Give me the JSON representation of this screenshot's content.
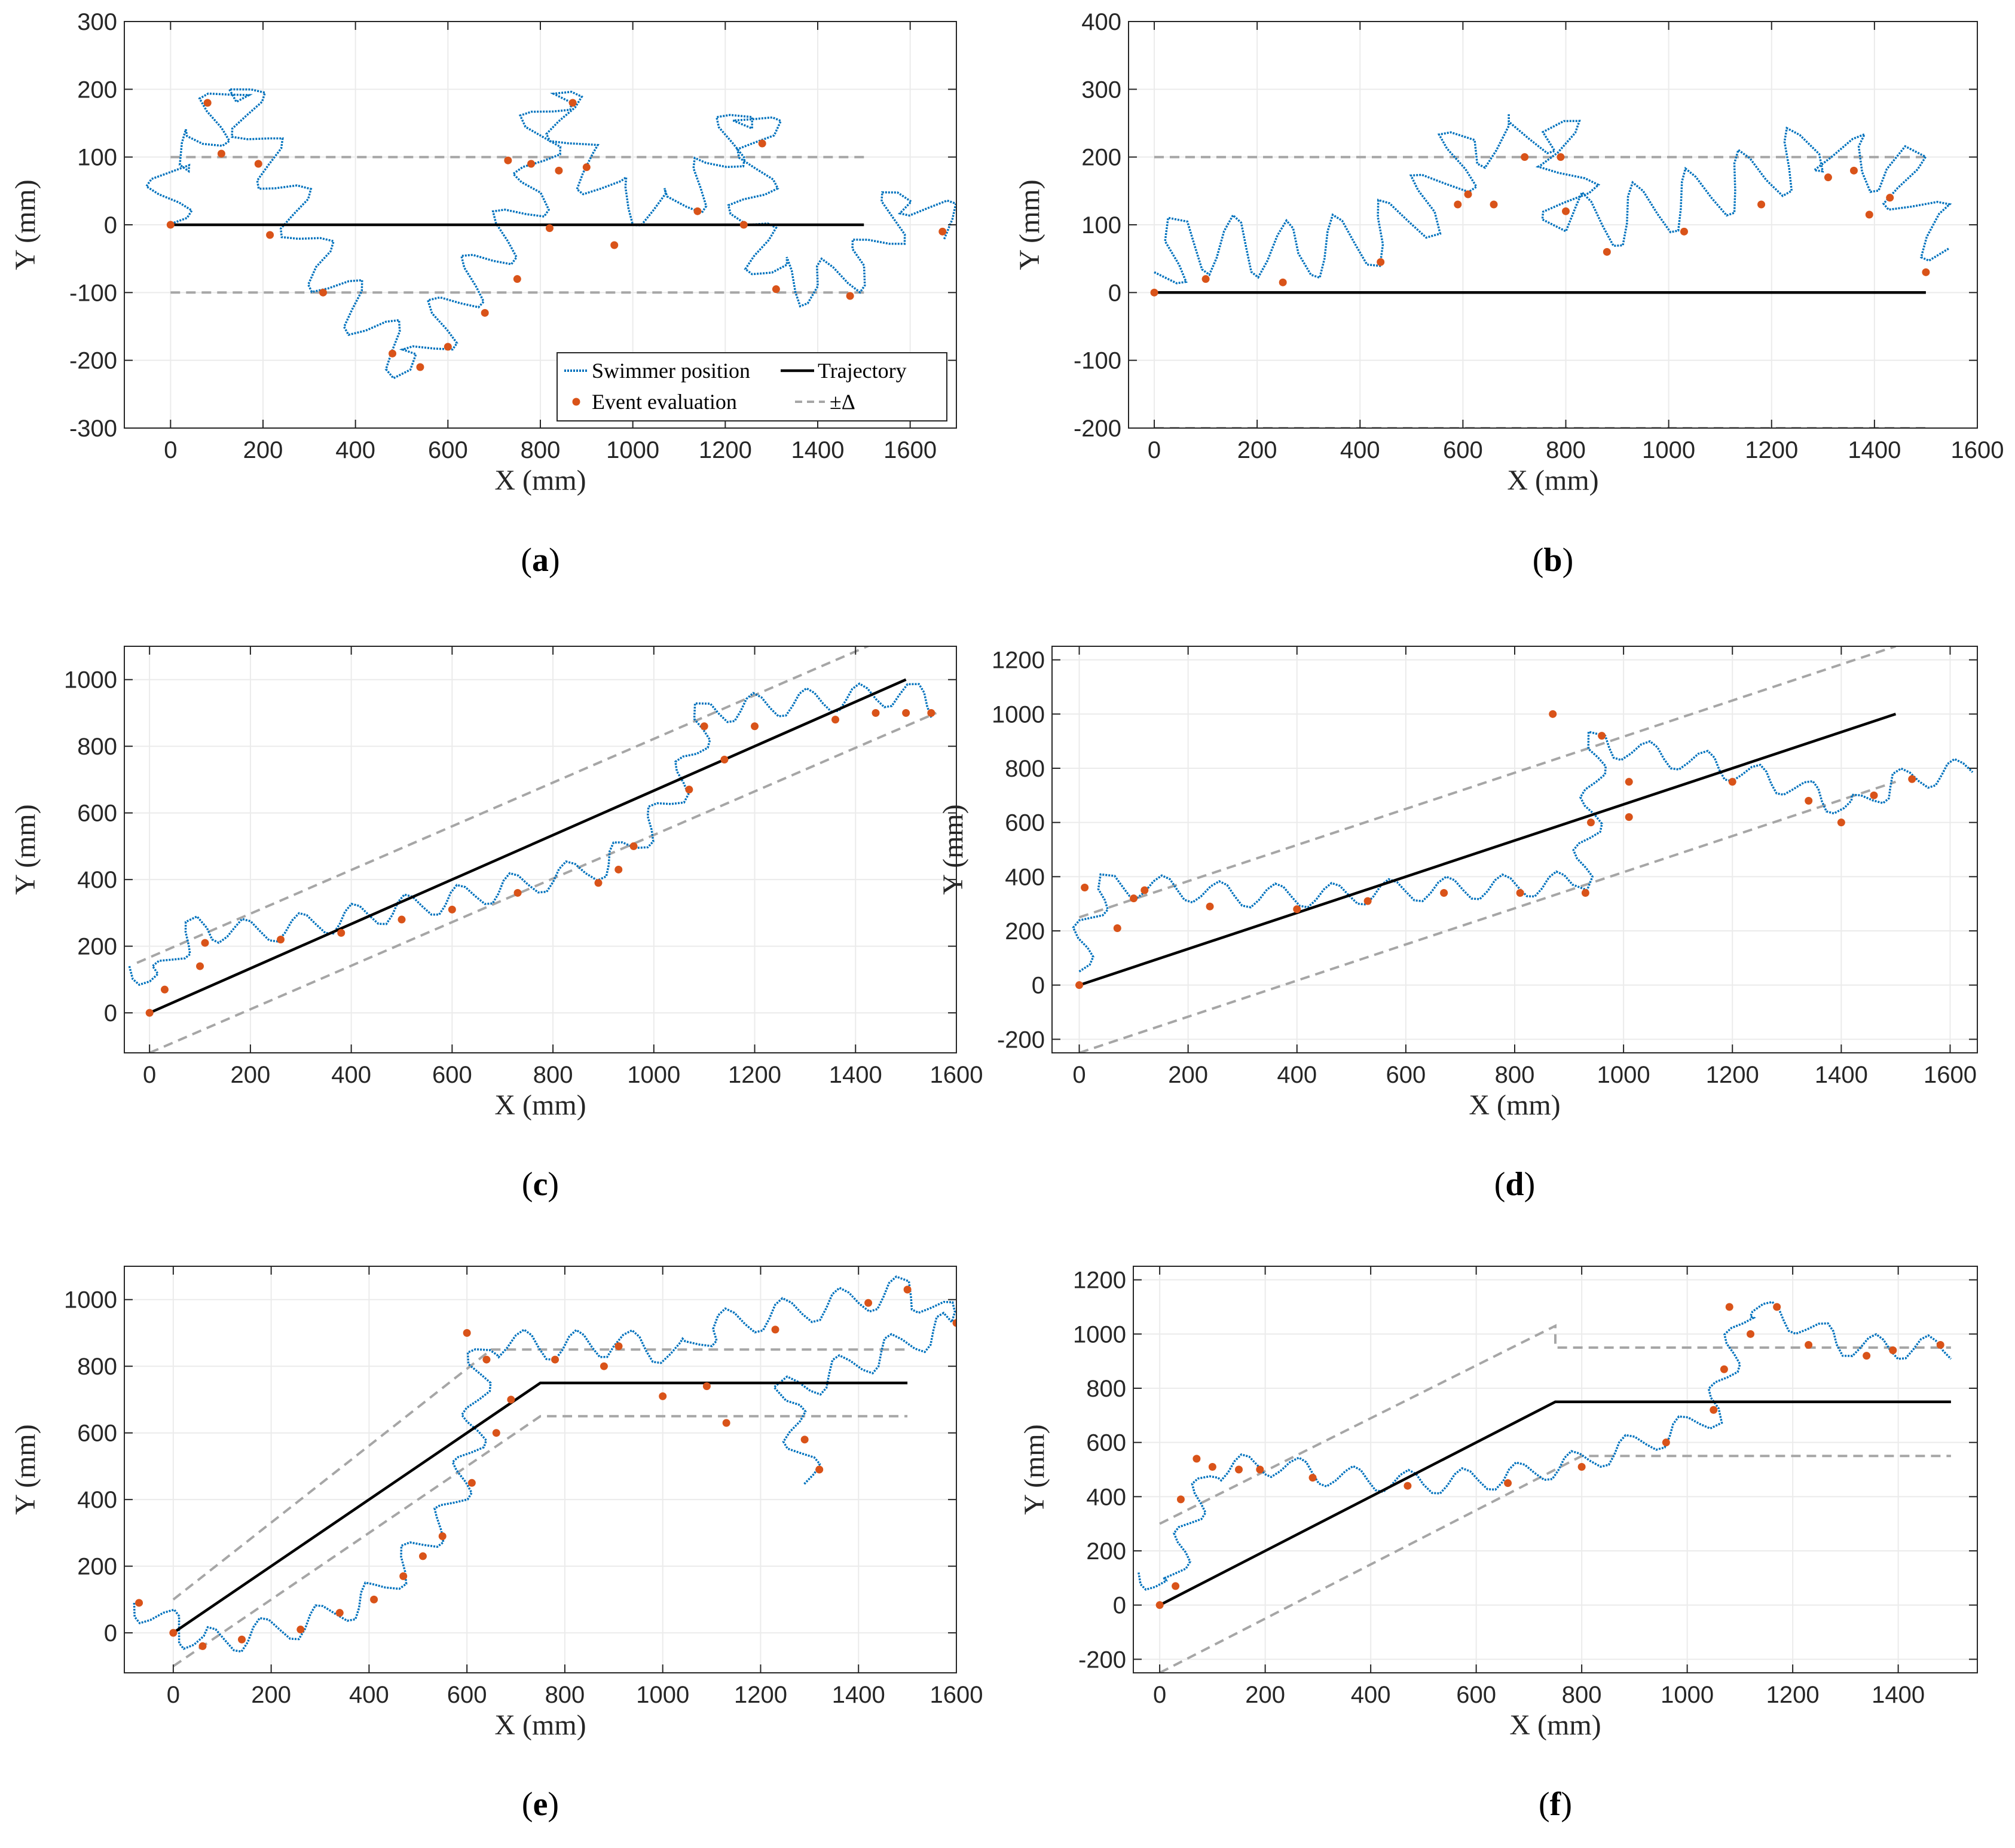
{
  "colors": {
    "swimmer": "#0072BD",
    "event": "#D95319",
    "trajectory": "#000000",
    "delta": "#A6A6A6",
    "grid": "#EBEBEB",
    "axes": "#262626"
  },
  "legend": {
    "swimmer": "Swimmer position",
    "trajectory": "Trajectory",
    "event": "Event evaluation",
    "delta": "±Δ"
  },
  "chart_data": [
    {
      "panel": "a",
      "type": "line",
      "xlabel": "X (mm)",
      "ylabel": "Y (mm)",
      "xlim": [
        -100,
        1700
      ],
      "ylim": [
        -300,
        300
      ],
      "xticks": [
        0,
        200,
        400,
        600,
        800,
        1000,
        1200,
        1400,
        1600
      ],
      "yticks": [
        -300,
        -200,
        -100,
        0,
        100,
        200,
        300
      ],
      "grid": true,
      "legend_position": "bottom-right",
      "trajectory": [
        [
          0,
          0
        ],
        [
          1500,
          0
        ]
      ],
      "delta_bounds": [
        [
          [
            0,
            100
          ],
          [
            1500,
            100
          ]
        ],
        [
          [
            0,
            -100
          ],
          [
            1500,
            -100
          ]
        ]
      ],
      "swimmer_path": [
        [
          -5,
          0
        ],
        [
          0,
          100
        ],
        [
          60,
          110
        ],
        [
          100,
          160
        ],
        [
          140,
          215
        ],
        [
          190,
          120
        ],
        [
          250,
          50
        ],
        [
          320,
          -60
        ],
        [
          420,
          -140
        ],
        [
          510,
          -200
        ],
        [
          540,
          -210
        ],
        [
          600,
          -130
        ],
        [
          700,
          -40
        ],
        [
          790,
          50
        ],
        [
          800,
          140
        ],
        [
          830,
          200
        ],
        [
          880,
          100
        ],
        [
          960,
          40
        ],
        [
          1080,
          20
        ],
        [
          1180,
          80
        ],
        [
          1250,
          175
        ],
        [
          1280,
          130
        ],
        [
          1250,
          0
        ],
        [
          1310,
          -80
        ],
        [
          1400,
          -90
        ],
        [
          1500,
          -60
        ],
        [
          1600,
          50
        ],
        [
          1690,
          -10
        ]
      ],
      "amplitude": 35,
      "events": [
        [
          0,
          0
        ],
        [
          80,
          180
        ],
        [
          110,
          105
        ],
        [
          190,
          90
        ],
        [
          215,
          -15
        ],
        [
          330,
          -100
        ],
        [
          480,
          -190
        ],
        [
          540,
          -210
        ],
        [
          600,
          -180
        ],
        [
          680,
          -130
        ],
        [
          750,
          -80
        ],
        [
          730,
          95
        ],
        [
          780,
          90
        ],
        [
          820,
          -5
        ],
        [
          840,
          80
        ],
        [
          870,
          180
        ],
        [
          900,
          85
        ],
        [
          960,
          -30
        ],
        [
          1140,
          20
        ],
        [
          1240,
          0
        ],
        [
          1280,
          120
        ],
        [
          1310,
          -95
        ],
        [
          1470,
          -105
        ],
        [
          1670,
          -10
        ]
      ]
    },
    {
      "panel": "b",
      "type": "line",
      "xlabel": "X (mm)",
      "ylabel": "Y (mm)",
      "xlim": [
        -50,
        1600
      ],
      "ylim": [
        -200,
        400
      ],
      "xticks": [
        0,
        200,
        400,
        600,
        800,
        1000,
        1200,
        1400,
        1600
      ],
      "yticks": [
        -200,
        -100,
        0,
        100,
        200,
        300,
        400
      ],
      "grid": true,
      "legend_position": "none",
      "trajectory": [
        [
          0,
          0
        ],
        [
          1500,
          0
        ]
      ],
      "delta_bounds": [
        [
          [
            0,
            200
          ],
          [
            1500,
            200
          ]
        ],
        [
          [
            0,
            -200
          ],
          [
            1500,
            -200
          ]
        ]
      ],
      "swimmer_path": [
        [
          0,
          30
        ],
        [
          50,
          70
        ],
        [
          150,
          70
        ],
        [
          280,
          60
        ],
        [
          420,
          80
        ],
        [
          520,
          120
        ],
        [
          580,
          180
        ],
        [
          620,
          230
        ],
        [
          700,
          220
        ],
        [
          760,
          250
        ],
        [
          800,
          200
        ],
        [
          810,
          100
        ],
        [
          900,
          110
        ],
        [
          1050,
          140
        ],
        [
          1200,
          180
        ],
        [
          1300,
          220
        ],
        [
          1360,
          190
        ],
        [
          1440,
          190
        ],
        [
          1500,
          100
        ],
        [
          1550,
          70
        ]
      ],
      "amplitude": 45,
      "events": [
        [
          0,
          0
        ],
        [
          100,
          20
        ],
        [
          250,
          15
        ],
        [
          440,
          45
        ],
        [
          590,
          130
        ],
        [
          610,
          145
        ],
        [
          660,
          130
        ],
        [
          720,
          200
        ],
        [
          790,
          200
        ],
        [
          800,
          120
        ],
        [
          880,
          60
        ],
        [
          1030,
          90
        ],
        [
          1180,
          130
        ],
        [
          1310,
          170
        ],
        [
          1360,
          180
        ],
        [
          1390,
          115
        ],
        [
          1430,
          140
        ],
        [
          1500,
          30
        ]
      ]
    },
    {
      "panel": "c",
      "type": "line",
      "xlabel": "X (mm)",
      "ylabel": "Y (mm)",
      "xlim": [
        -50,
        1600
      ],
      "ylim": [
        -120,
        1100
      ],
      "xticks": [
        0,
        200,
        400,
        600,
        800,
        1000,
        1200,
        1400,
        1600
      ],
      "yticks": [
        0,
        200,
        400,
        600,
        800,
        1000
      ],
      "grid": true,
      "legend_position": "none",
      "trajectory": [
        [
          0,
          0
        ],
        [
          1500,
          1000
        ]
      ],
      "delta_bounds": [
        [
          [
            -25,
            150
          ],
          [
            1500,
            1150
          ]
        ],
        [
          [
            0,
            -120
          ],
          [
            1560,
            900
          ]
        ]
      ],
      "swimmer_path": [
        [
          -40,
          140
        ],
        [
          20,
          100
        ],
        [
          60,
          200
        ],
        [
          100,
          260
        ],
        [
          170,
          240
        ],
        [
          300,
          260
        ],
        [
          450,
          300
        ],
        [
          600,
          340
        ],
        [
          750,
          390
        ],
        [
          880,
          430
        ],
        [
          960,
          500
        ],
        [
          1040,
          650
        ],
        [
          1080,
          780
        ],
        [
          1100,
          900
        ],
        [
          1200,
          920
        ],
        [
          1350,
          940
        ],
        [
          1500,
          960
        ],
        [
          1560,
          920
        ]
      ],
      "amplitude": 40,
      "events": [
        [
          0,
          0
        ],
        [
          30,
          70
        ],
        [
          100,
          140
        ],
        [
          110,
          210
        ],
        [
          260,
          220
        ],
        [
          380,
          240
        ],
        [
          500,
          280
        ],
        [
          600,
          310
        ],
        [
          730,
          360
        ],
        [
          890,
          390
        ],
        [
          930,
          430
        ],
        [
          960,
          500
        ],
        [
          1070,
          670
        ],
        [
          1100,
          860
        ],
        [
          1140,
          760
        ],
        [
          1200,
          860
        ],
        [
          1360,
          880
        ],
        [
          1440,
          900
        ],
        [
          1500,
          900
        ],
        [
          1550,
          900
        ]
      ]
    },
    {
      "panel": "d",
      "type": "line",
      "xlabel": "X (mm)",
      "ylabel": "Y (mm)",
      "xlim": [
        -50,
        1650
      ],
      "ylim": [
        -250,
        1250
      ],
      "xticks": [
        0,
        200,
        400,
        600,
        800,
        1000,
        1200,
        1400,
        1600
      ],
      "yticks": [
        -200,
        0,
        200,
        400,
        600,
        800,
        1000,
        1200
      ],
      "grid": true,
      "legend_position": "none",
      "trajectory": [
        [
          0,
          0
        ],
        [
          1500,
          1000
        ]
      ],
      "delta_bounds": [
        [
          [
            0,
            250
          ],
          [
            1500,
            1250
          ]
        ],
        [
          [
            0,
            -250
          ],
          [
            1500,
            750
          ]
        ]
      ],
      "swimmer_path": [
        [
          0,
          50
        ],
        [
          10,
          200
        ],
        [
          50,
          370
        ],
        [
          150,
          360
        ],
        [
          300,
          330
        ],
        [
          450,
          330
        ],
        [
          600,
          350
        ],
        [
          750,
          360
        ],
        [
          850,
          370
        ],
        [
          920,
          380
        ],
        [
          940,
          600
        ],
        [
          950,
          900
        ],
        [
          1000,
          870
        ],
        [
          1150,
          820
        ],
        [
          1300,
          740
        ],
        [
          1420,
          650
        ],
        [
          1500,
          750
        ],
        [
          1640,
          800
        ]
      ],
      "amplitude": 45,
      "events": [
        [
          0,
          0
        ],
        [
          10,
          360
        ],
        [
          70,
          210
        ],
        [
          100,
          320
        ],
        [
          120,
          350
        ],
        [
          240,
          290
        ],
        [
          400,
          280
        ],
        [
          530,
          310
        ],
        [
          670,
          340
        ],
        [
          810,
          340
        ],
        [
          930,
          340
        ],
        [
          940,
          600
        ],
        [
          960,
          920
        ],
        [
          1010,
          620
        ],
        [
          1010,
          750
        ],
        [
          1200,
          750
        ],
        [
          1340,
          680
        ],
        [
          1400,
          600
        ],
        [
          1460,
          700
        ],
        [
          1530,
          760
        ],
        [
          870,
          1000
        ]
      ]
    },
    {
      "panel": "e",
      "type": "line",
      "xlabel": "X (mm)",
      "ylabel": "Y (mm)",
      "xlim": [
        -100,
        1600
      ],
      "ylim": [
        -120,
        1100
      ],
      "xticks": [
        0,
        200,
        400,
        600,
        800,
        1000,
        1200,
        1400,
        1600
      ],
      "yticks": [
        0,
        200,
        400,
        600,
        800,
        1000
      ],
      "grid": true,
      "legend_position": "none",
      "trajectory": [
        [
          0,
          0
        ],
        [
          750,
          750
        ],
        [
          1500,
          750
        ]
      ],
      "delta_bounds": [
        [
          [
            0,
            100
          ],
          [
            650,
            850
          ],
          [
            1500,
            850
          ]
        ],
        [
          [
            0,
            -100
          ],
          [
            750,
            650
          ],
          [
            1500,
            650
          ]
        ]
      ],
      "swimmer_path": [
        [
          -80,
          90
        ],
        [
          0,
          20
        ],
        [
          60,
          -30
        ],
        [
          150,
          -10
        ],
        [
          300,
          40
        ],
        [
          420,
          120
        ],
        [
          500,
          250
        ],
        [
          560,
          350
        ],
        [
          600,
          500
        ],
        [
          620,
          650
        ],
        [
          620,
          800
        ],
        [
          650,
          870
        ],
        [
          780,
          860
        ],
        [
          900,
          870
        ],
        [
          1050,
          840
        ],
        [
          1100,
          920
        ],
        [
          1250,
          960
        ],
        [
          1400,
          1000
        ],
        [
          1500,
          1030
        ],
        [
          1600,
          930
        ],
        [
          1250,
          720
        ],
        [
          1300,
          450
        ]
      ],
      "amplitude": 45,
      "events": [
        [
          -70,
          90
        ],
        [
          0,
          0
        ],
        [
          60,
          -40
        ],
        [
          140,
          -20
        ],
        [
          260,
          10
        ],
        [
          340,
          60
        ],
        [
          410,
          100
        ],
        [
          470,
          170
        ],
        [
          510,
          230
        ],
        [
          550,
          290
        ],
        [
          610,
          450
        ],
        [
          660,
          600
        ],
        [
          690,
          700
        ],
        [
          640,
          820
        ],
        [
          600,
          900
        ],
        [
          780,
          820
        ],
        [
          880,
          800
        ],
        [
          910,
          860
        ],
        [
          1000,
          710
        ],
        [
          1090,
          740
        ],
        [
          1130,
          630
        ],
        [
          1230,
          910
        ],
        [
          1290,
          580
        ],
        [
          1320,
          490
        ],
        [
          1500,
          1030
        ],
        [
          1600,
          930
        ],
        [
          1420,
          990
        ]
      ]
    },
    {
      "panel": "f",
      "type": "line",
      "xlabel": "X (mm)",
      "ylabel": "Y (mm)",
      "xlim": [
        -50,
        1550
      ],
      "ylim": [
        -250,
        1250
      ],
      "xticks": [
        0,
        200,
        400,
        600,
        800,
        1000,
        1200,
        1400
      ],
      "yticks": [
        -200,
        0,
        200,
        400,
        600,
        800,
        1000,
        1200
      ],
      "grid": true,
      "legend_position": "none",
      "trajectory": [
        [
          0,
          0
        ],
        [
          750,
          750
        ],
        [
          1500,
          750
        ]
      ],
      "delta_bounds": [
        [
          [
            0,
            300
          ],
          [
            750,
            1030
          ],
          [
            750,
            950
          ],
          [
            1500,
            950
          ]
        ],
        [
          [
            0,
            -250
          ],
          [
            750,
            500
          ],
          [
            800,
            550
          ],
          [
            1500,
            550
          ]
        ]
      ],
      "swimmer_path": [
        [
          -40,
          120
        ],
        [
          20,
          60
        ],
        [
          40,
          200
        ],
        [
          70,
          380
        ],
        [
          100,
          500
        ],
        [
          200,
          520
        ],
        [
          350,
          470
        ],
        [
          500,
          450
        ],
        [
          650,
          470
        ],
        [
          800,
          530
        ],
        [
          950,
          620
        ],
        [
          1050,
          700
        ],
        [
          1080,
          900
        ],
        [
          1110,
          1100
        ],
        [
          1200,
          1050
        ],
        [
          1300,
          960
        ],
        [
          1400,
          950
        ],
        [
          1500,
          950
        ]
      ],
      "amplitude": 45,
      "events": [
        [
          0,
          0
        ],
        [
          30,
          70
        ],
        [
          40,
          390
        ],
        [
          70,
          540
        ],
        [
          100,
          510
        ],
        [
          150,
          500
        ],
        [
          190,
          500
        ],
        [
          290,
          470
        ],
        [
          470,
          440
        ],
        [
          660,
          450
        ],
        [
          800,
          510
        ],
        [
          960,
          600
        ],
        [
          1050,
          720
        ],
        [
          1070,
          870
        ],
        [
          1080,
          1100
        ],
        [
          1120,
          1000
        ],
        [
          1170,
          1100
        ],
        [
          1230,
          960
        ],
        [
          1340,
          920
        ],
        [
          1390,
          940
        ],
        [
          1480,
          960
        ]
      ]
    }
  ],
  "subfigure_labels": [
    "(a)",
    "(b)",
    "(c)",
    "(d)",
    "(e)",
    "(f)"
  ]
}
